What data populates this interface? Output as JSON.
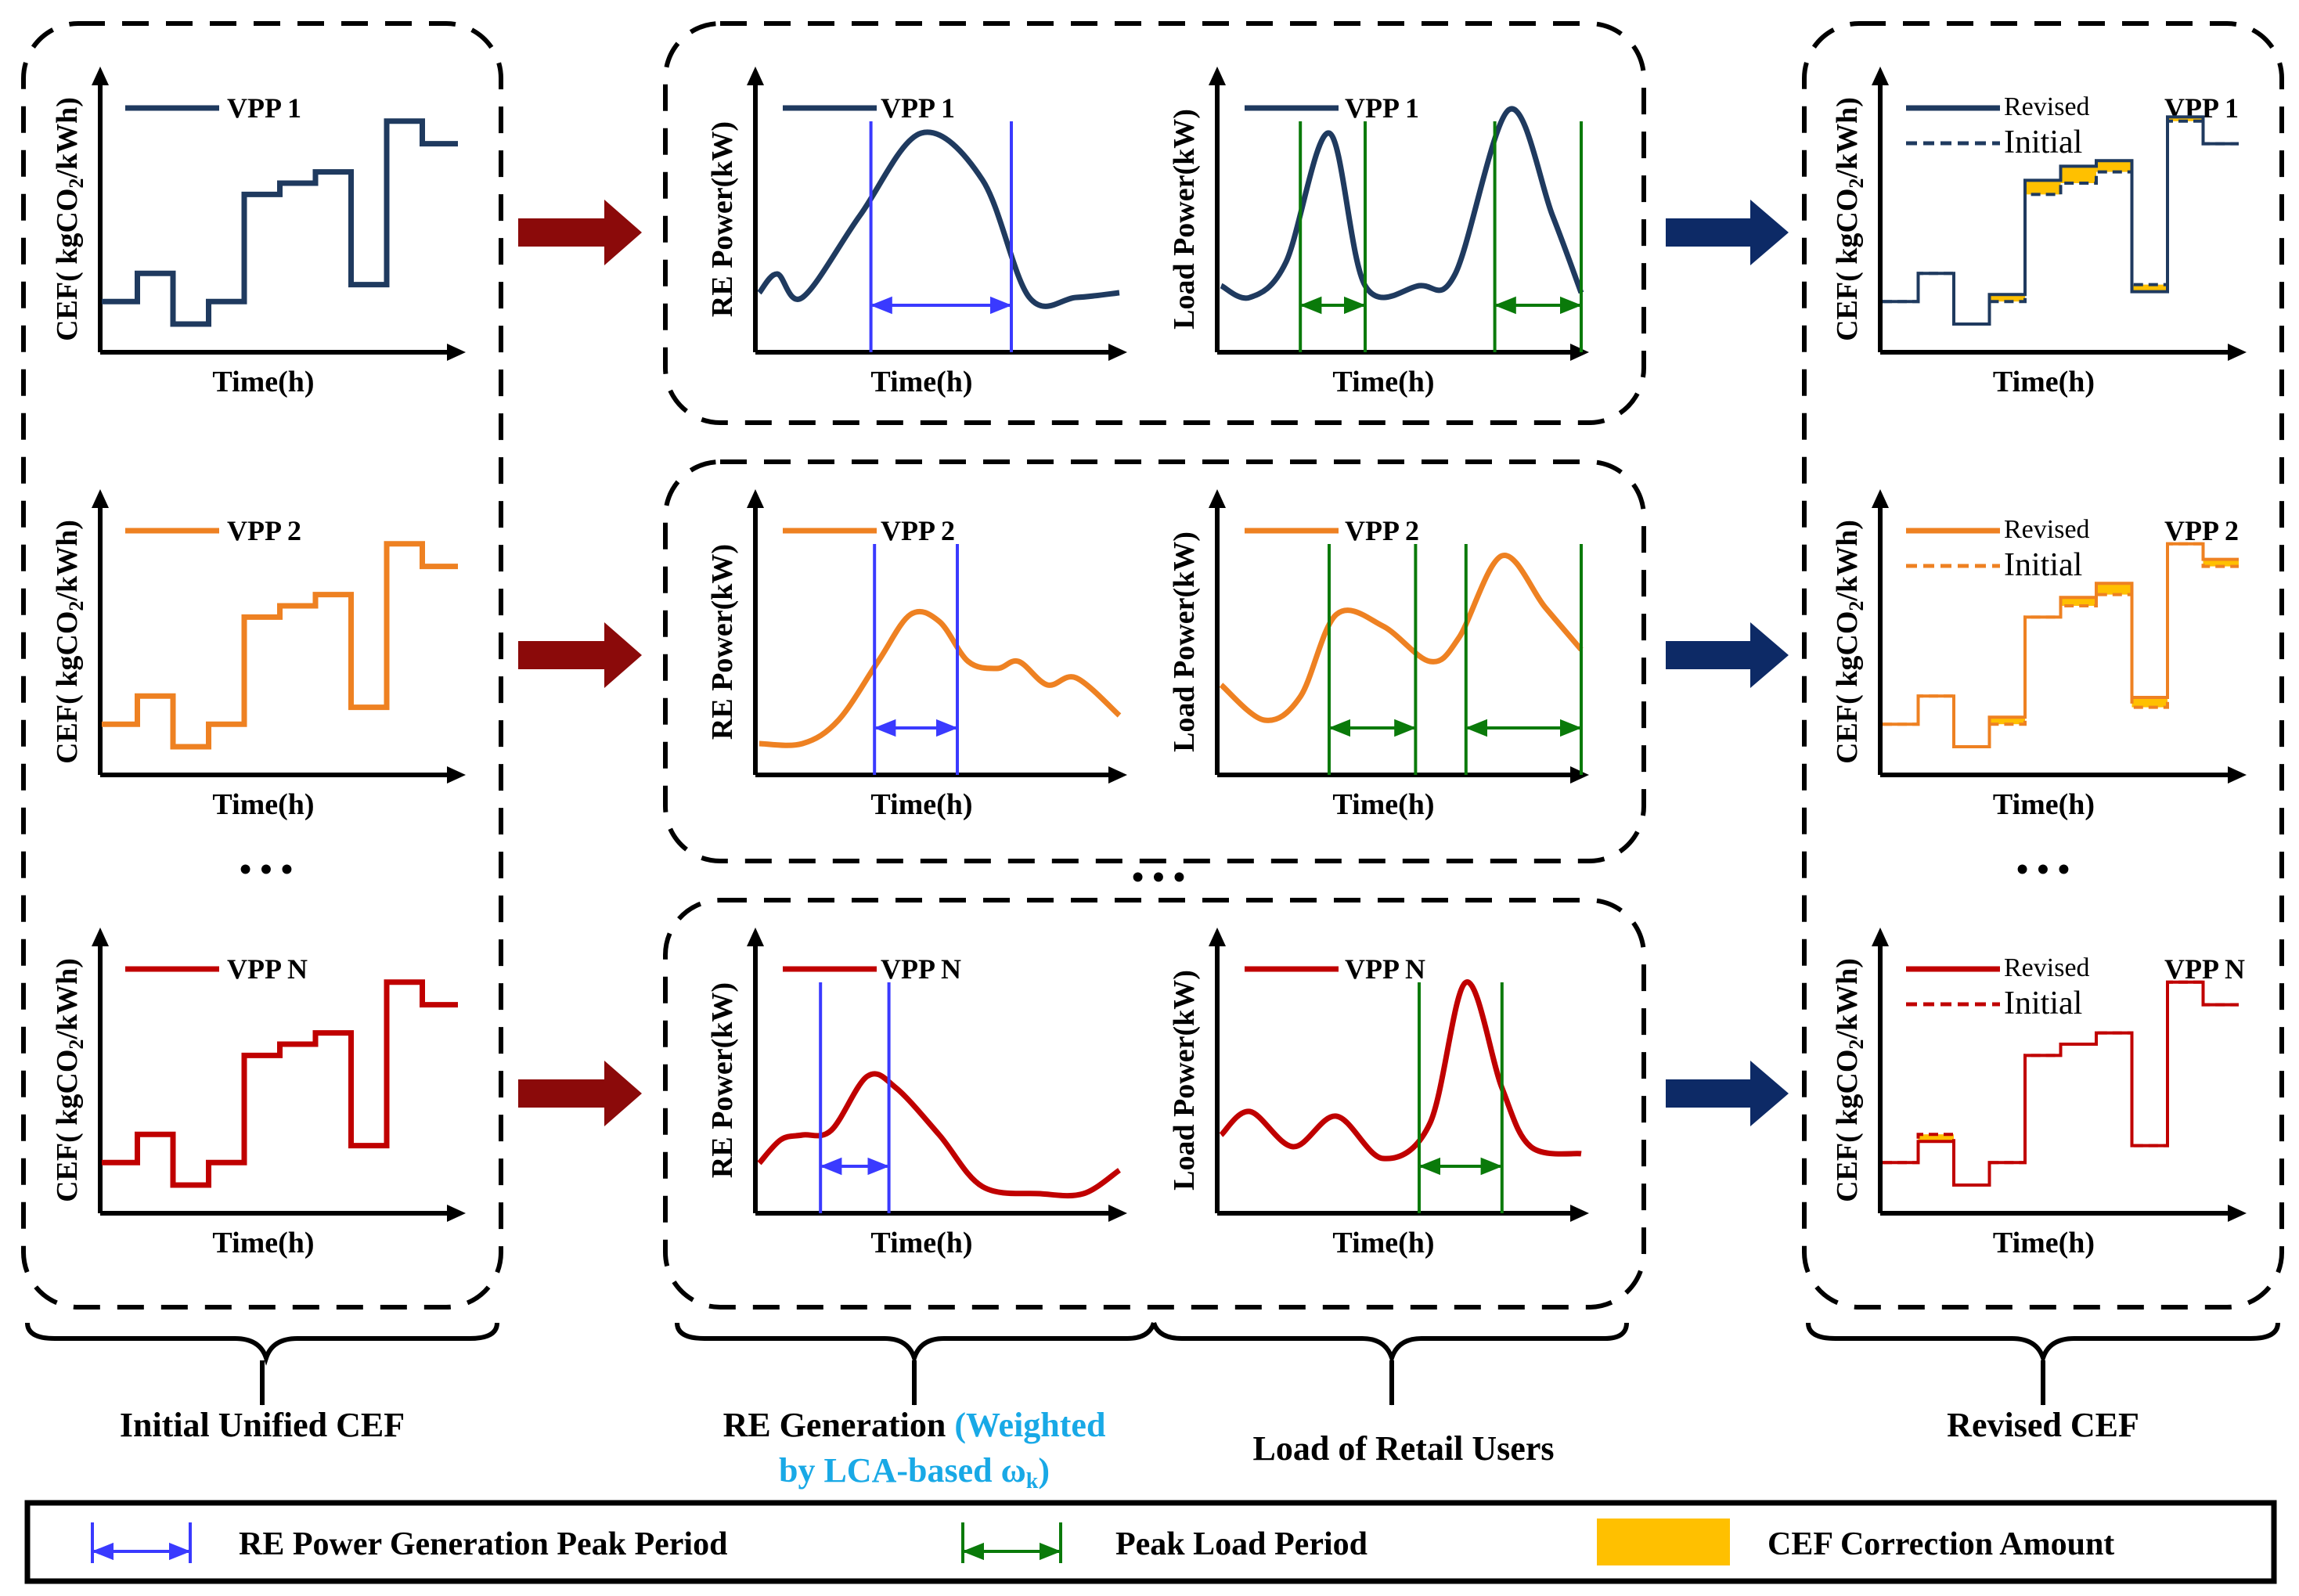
{
  "colors": {
    "vpp1": "#1f3a5f",
    "vpp2": "#ee8122",
    "vppN": "#c00000",
    "re_peak": "#3a3aff",
    "load_peak": "#0a7a0a",
    "correction": "#ffc000",
    "arrow_red": "#8b0a0a",
    "arrow_navy": "#0d2a66",
    "sky": "#19a9e6"
  },
  "axis_labels": {
    "cef_y_pre": "CEF( kgCO",
    "cef_y_sub": "2",
    "cef_y_post": "/kWh)",
    "re_y": "RE Power(kW)",
    "load_y": "Load Power(kW)",
    "x": "Time(h)"
  },
  "vpp_names": [
    "VPP 1",
    "VPP 2",
    "VPP N"
  ],
  "revised_legend": {
    "revised": "Revised",
    "initial": "Initial"
  },
  "ellipsis": "• • •",
  "section_labels": {
    "initial": "Initial Unified CEF",
    "re_gen": "RE Generation ",
    "re_weighted_a": "(Weighted",
    "re_weighted_b_pre": "by LCA-based ω",
    "re_weighted_b_sub": "k",
    "re_weighted_b_post": ")",
    "load": "Load of Retail Users",
    "revised": "Revised CEF"
  },
  "legend": {
    "re_peak": "RE Power Generation Peak Period",
    "load_peak": "Peak Load Period",
    "correction": "CEF Correction Amount"
  }
}
